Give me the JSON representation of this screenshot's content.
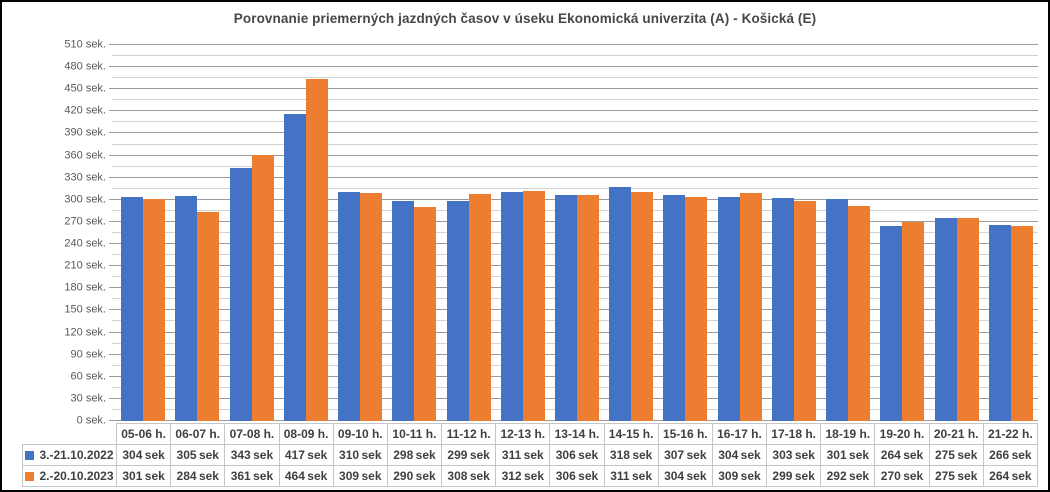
{
  "colors": {
    "series_2022": "#4472C4",
    "series_2023": "#ED7D31",
    "gridline_major": "#9C9C9C",
    "gridline_minor": "#D2D2D2",
    "table_border": "#C6C6C6",
    "title_text": "#474747",
    "axis_text": "#595959",
    "table_text": "#404040"
  },
  "chart_data": {
    "type": "bar",
    "title": "Porovnanie priemerných jazdných časov v úseku Ekonomická univerzita (A) - Košická (E)",
    "categories": [
      "05-06 h.",
      "06-07 h.",
      "07-08 h.",
      "08-09 h.",
      "09-10 h.",
      "10-11 h.",
      "11-12 h.",
      "12-13 h.",
      "13-14 h.",
      "14-15 h.",
      "15-16 h.",
      "16-17 h.",
      "17-18 h.",
      "18-19 h.",
      "19-20 h.",
      "20-21 h.",
      "21-22 h."
    ],
    "series": [
      {
        "name": "3.-21.10.2022",
        "color": "#4472C4",
        "values": [
          304,
          305,
          343,
          417,
          310,
          298,
          299,
          311,
          306,
          318,
          307,
          304,
          303,
          301,
          264,
          275,
          266
        ]
      },
      {
        "name": "2.-20.10.2023",
        "color": "#ED7D31",
        "values": [
          301,
          284,
          361,
          464,
          309,
          290,
          308,
          312,
          306,
          311,
          304,
          309,
          299,
          292,
          270,
          275,
          264
        ]
      }
    ],
    "ylim": [
      0,
      510
    ],
    "y_major_step": 30,
    "y_minor_step": 15,
    "axis_unit": "sek.",
    "value_unit": "sek",
    "grid": true,
    "legend_position": "data-table-left"
  }
}
